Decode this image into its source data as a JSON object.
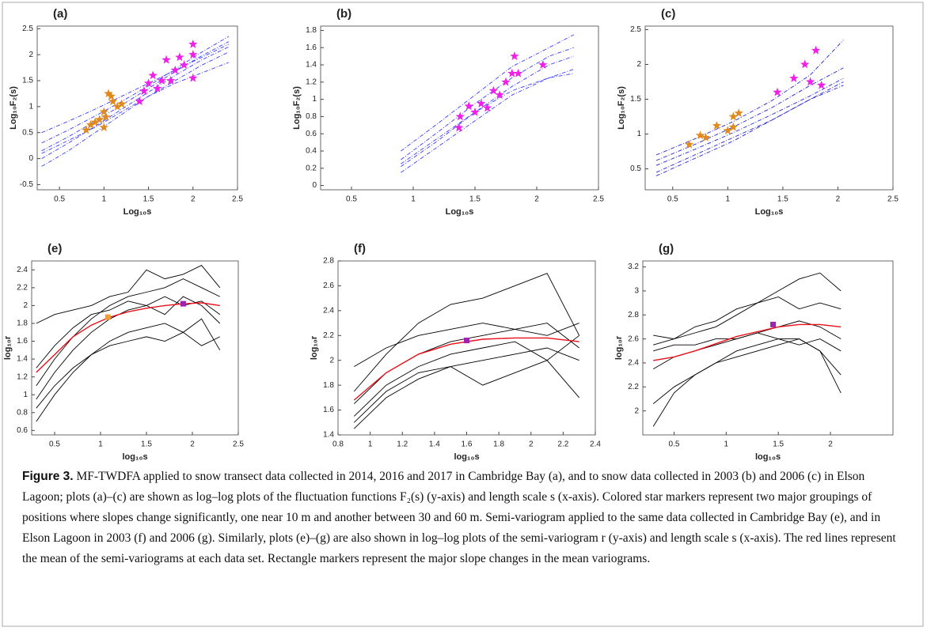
{
  "chart_data": [
    {
      "type": "line",
      "title": "(a)",
      "xlabel": "Log₁₀s",
      "ylabel": "Log₁₀F₂(s)",
      "xlim": [
        0.25,
        2.5
      ],
      "ylim": [
        -0.6,
        2.55
      ],
      "xticks": [
        0.5,
        1,
        1.5,
        2,
        2.5
      ],
      "yticks": [
        -0.5,
        0,
        0.5,
        1,
        1.5,
        2,
        2.5
      ],
      "x": [
        0.3,
        0.6,
        0.9,
        1.2,
        1.5,
        1.8,
        2.1,
        2.4
      ],
      "series": [
        {
          "color": "#3b3bff",
          "style": "dashdot",
          "values": [
            -0.15,
            0.15,
            0.5,
            0.85,
            1.2,
            1.5,
            1.8,
            2.05
          ]
        },
        {
          "color": "#3b3bff",
          "style": "dashdot",
          "values": [
            0.0,
            0.3,
            0.62,
            0.95,
            1.28,
            1.6,
            1.9,
            2.15
          ]
        },
        {
          "color": "#3b3bff",
          "style": "dashdot",
          "values": [
            0.15,
            0.42,
            0.72,
            1.03,
            1.35,
            1.68,
            1.98,
            2.25
          ]
        },
        {
          "color": "#3b3bff",
          "style": "dashdot",
          "values": [
            0.3,
            0.55,
            0.82,
            1.1,
            1.4,
            1.72,
            2.05,
            2.35
          ]
        },
        {
          "color": "#3b3bff",
          "style": "dashdot",
          "values": [
            0.5,
            0.72,
            0.95,
            1.2,
            1.45,
            1.7,
            1.95,
            2.2
          ]
        },
        {
          "color": "#3b3bff",
          "style": "dashdot",
          "values": [
            0.1,
            0.35,
            0.6,
            0.9,
            1.2,
            1.45,
            1.65,
            1.85
          ]
        },
        {
          "color": "#e08a1e",
          "marker": "star",
          "x": [
            0.8,
            0.85,
            0.95,
            1.0,
            1.0,
            1.05,
            1.1,
            1.15,
            1.2,
            0.9,
            1.02,
            1.08
          ],
          "values": [
            0.55,
            0.65,
            0.75,
            0.6,
            0.9,
            1.25,
            1.1,
            1.0,
            1.05,
            0.7,
            0.8,
            1.2
          ]
        },
        {
          "color": "#f020e8",
          "marker": "star",
          "x": [
            1.4,
            1.45,
            1.5,
            1.55,
            1.6,
            1.7,
            1.75,
            1.8,
            1.9,
            2.0,
            2.0,
            2.0,
            1.65,
            1.85
          ],
          "values": [
            1.1,
            1.3,
            1.45,
            1.6,
            1.35,
            1.9,
            1.5,
            1.7,
            1.8,
            2.2,
            1.55,
            2.0,
            1.5,
            1.95
          ]
        }
      ]
    },
    {
      "type": "line",
      "title": "(b)",
      "xlabel": "Log₁₀s",
      "ylabel": "Log₁₀F₂(s)",
      "xlim": [
        0.25,
        2.5
      ],
      "ylim": [
        -0.05,
        1.85
      ],
      "xticks": [
        0.5,
        1,
        1.5,
        2,
        2.5
      ],
      "yticks": [
        0,
        0.2,
        0.4,
        0.6,
        0.8,
        1,
        1.2,
        1.4,
        1.6,
        1.8
      ],
      "x": [
        0.9,
        1.2,
        1.5,
        1.8,
        2.1,
        2.3
      ],
      "series": [
        {
          "color": "#3b3bff",
          "style": "dashdot",
          "values": [
            0.15,
            0.45,
            0.75,
            1.05,
            1.25,
            1.35
          ]
        },
        {
          "color": "#3b3bff",
          "style": "dashdot",
          "values": [
            0.22,
            0.52,
            0.85,
            1.15,
            1.4,
            1.5
          ]
        },
        {
          "color": "#3b3bff",
          "style": "dashdot",
          "values": [
            0.3,
            0.62,
            0.95,
            1.25,
            1.5,
            1.6
          ]
        },
        {
          "color": "#3b3bff",
          "style": "dashdot",
          "values": [
            0.4,
            0.72,
            1.05,
            1.38,
            1.6,
            1.75
          ]
        },
        {
          "color": "#3b3bff",
          "style": "dashdot",
          "values": [
            0.25,
            0.55,
            0.85,
            1.1,
            1.25,
            1.3
          ]
        },
        {
          "color": "#f020e8",
          "marker": "star",
          "x": [
            1.37,
            1.38,
            1.45,
            1.5,
            1.55,
            1.6,
            1.65,
            1.7,
            1.75,
            1.8,
            1.82,
            1.85,
            2.05
          ],
          "values": [
            0.67,
            0.8,
            0.92,
            0.85,
            0.95,
            0.9,
            1.1,
            1.05,
            1.2,
            1.3,
            1.5,
            1.3,
            1.4
          ]
        }
      ]
    },
    {
      "type": "line",
      "title": "(c)",
      "xlabel": "Log₁₀s",
      "ylabel": "Log₁₀F₂(s)",
      "xlim": [
        0.25,
        2.5
      ],
      "ylim": [
        0.2,
        2.55
      ],
      "xticks": [
        0.5,
        1,
        1.5,
        2,
        2.5
      ],
      "yticks": [
        0.5,
        1,
        1.5,
        2,
        2.5
      ],
      "x": [
        0.35,
        0.7,
        1.05,
        1.4,
        1.75,
        2.05
      ],
      "series": [
        {
          "color": "#2424d8",
          "style": "dashdot",
          "values": [
            0.45,
            0.7,
            0.95,
            1.2,
            1.5,
            1.75
          ]
        },
        {
          "color": "#2424d8",
          "style": "dashdot",
          "values": [
            0.55,
            0.78,
            1.02,
            1.28,
            1.55,
            1.8
          ]
        },
        {
          "color": "#2424d8",
          "style": "dashdot",
          "values": [
            0.62,
            0.85,
            1.1,
            1.38,
            1.7,
            1.95
          ]
        },
        {
          "color": "#2424d8",
          "style": "dashdot",
          "values": [
            0.7,
            0.93,
            1.18,
            1.48,
            1.85,
            2.35
          ]
        },
        {
          "color": "#2424d8",
          "style": "dashdot",
          "values": [
            0.4,
            0.65,
            0.9,
            1.2,
            1.5,
            1.7
          ]
        },
        {
          "color": "#e08a1e",
          "marker": "star",
          "x": [
            0.65,
            0.75,
            0.8,
            0.9,
            1.0,
            1.05,
            1.05,
            1.1
          ],
          "values": [
            0.85,
            0.98,
            0.95,
            1.12,
            1.05,
            1.25,
            1.1,
            1.3
          ]
        },
        {
          "color": "#f020e8",
          "marker": "star",
          "x": [
            1.45,
            1.6,
            1.7,
            1.75,
            1.8,
            1.85
          ],
          "values": [
            1.6,
            1.8,
            2.0,
            1.75,
            2.2,
            1.7
          ]
        }
      ]
    },
    {
      "type": "line",
      "title": "(e)",
      "xlabel": "log₁₀s",
      "ylabel": "log₁₀r",
      "xlim": [
        0.25,
        2.5
      ],
      "ylim": [
        0.55,
        2.5
      ],
      "xticks": [
        0.5,
        1,
        1.5,
        2,
        2.5
      ],
      "yticks": [
        0.6,
        0.8,
        1,
        1.2,
        1.4,
        1.6,
        1.8,
        2,
        2.2,
        2.4
      ],
      "x": [
        0.3,
        0.5,
        0.7,
        0.9,
        1.1,
        1.3,
        1.5,
        1.7,
        1.9,
        2.1,
        2.3
      ],
      "series": [
        {
          "color": "#000000",
          "style": "solid",
          "values": [
            0.7,
            1.0,
            1.25,
            1.45,
            1.6,
            1.7,
            1.75,
            1.8,
            1.7,
            1.85,
            1.5
          ]
        },
        {
          "color": "#000000",
          "style": "solid",
          "values": [
            0.95,
            1.25,
            1.5,
            1.7,
            1.85,
            1.95,
            2.0,
            2.1,
            2.0,
            2.05,
            1.9
          ]
        },
        {
          "color": "#000000",
          "style": "solid",
          "values": [
            1.1,
            1.4,
            1.65,
            1.85,
            2.0,
            2.1,
            2.15,
            2.2,
            2.3,
            2.2,
            2.1
          ]
        },
        {
          "color": "#000000",
          "style": "solid",
          "values": [
            1.8,
            1.9,
            1.95,
            2.0,
            2.1,
            2.15,
            2.4,
            2.3,
            2.35,
            2.45,
            2.2
          ]
        },
        {
          "color": "#000000",
          "style": "solid",
          "values": [
            0.85,
            1.1,
            1.3,
            1.45,
            1.55,
            1.6,
            1.65,
            1.6,
            1.7,
            1.55,
            1.65
          ]
        },
        {
          "color": "#000000",
          "style": "solid",
          "values": [
            1.3,
            1.55,
            1.75,
            1.9,
            1.95,
            2.05,
            2.0,
            1.9,
            2.1,
            2.0,
            1.8
          ]
        },
        {
          "color": "#e8101a",
          "style": "solid",
          "values": [
            1.25,
            1.45,
            1.65,
            1.78,
            1.87,
            1.93,
            1.97,
            2.0,
            2.02,
            2.03,
            2.0
          ]
        },
        {
          "color": "#f0a030",
          "marker": "square",
          "x": [
            1.08
          ],
          "values": [
            1.87
          ]
        },
        {
          "color": "#a020b0",
          "marker": "square",
          "x": [
            1.9
          ],
          "values": [
            2.02
          ]
        }
      ]
    },
    {
      "type": "line",
      "title": "(f)",
      "xlabel": "log₁₀s",
      "ylabel": "log₁₀r",
      "xlim": [
        0.8,
        2.4
      ],
      "ylim": [
        1.4,
        2.8
      ],
      "xticks": [
        0.8,
        1,
        1.2,
        1.4,
        1.6,
        1.8,
        2,
        2.2,
        2.4
      ],
      "yticks": [
        1.4,
        1.6,
        1.8,
        2,
        2.2,
        2.4,
        2.6,
        2.8
      ],
      "x": [
        0.9,
        1.1,
        1.3,
        1.5,
        1.7,
        1.9,
        2.1,
        2.3
      ],
      "series": [
        {
          "color": "#000000",
          "style": "solid",
          "values": [
            1.45,
            1.7,
            1.85,
            1.95,
            2.0,
            2.05,
            2.1,
            2.0
          ]
        },
        {
          "color": "#000000",
          "style": "solid",
          "values": [
            1.55,
            1.8,
            1.95,
            2.05,
            2.1,
            2.15,
            2.0,
            2.2
          ]
        },
        {
          "color": "#000000",
          "style": "solid",
          "values": [
            1.65,
            1.9,
            2.05,
            2.15,
            2.2,
            2.25,
            2.3,
            2.1
          ]
        },
        {
          "color": "#000000",
          "style": "solid",
          "values": [
            1.75,
            2.05,
            2.3,
            2.45,
            2.5,
            2.6,
            2.7,
            2.2
          ]
        },
        {
          "color": "#000000",
          "style": "solid",
          "values": [
            1.95,
            2.1,
            2.2,
            2.25,
            2.3,
            2.25,
            2.2,
            2.3
          ]
        },
        {
          "color": "#000000",
          "style": "solid",
          "values": [
            1.5,
            1.75,
            1.9,
            1.95,
            1.8,
            1.9,
            2.0,
            1.7
          ]
        },
        {
          "color": "#e8101a",
          "style": "solid",
          "values": [
            1.68,
            1.9,
            2.05,
            2.13,
            2.17,
            2.18,
            2.18,
            2.15
          ]
        },
        {
          "color": "#a020b0",
          "marker": "square",
          "x": [
            1.6
          ],
          "values": [
            2.16
          ]
        }
      ]
    },
    {
      "type": "line",
      "title": "(g)",
      "xlabel": "log₁₀s",
      "ylabel": "log₁₀r",
      "xlim": [
        0.2,
        2.6
      ],
      "ylim": [
        1.8,
        3.25
      ],
      "xticks": [
        0.5,
        1,
        1.5,
        2
      ],
      "yticks": [
        2,
        2.2,
        2.4,
        2.6,
        2.8,
        3,
        3.2
      ],
      "x": [
        0.3,
        0.5,
        0.7,
        0.9,
        1.1,
        1.3,
        1.5,
        1.7,
        1.9,
        2.1
      ],
      "series": [
        {
          "color": "#000000",
          "style": "solid",
          "values": [
            1.87,
            2.15,
            2.3,
            2.4,
            2.5,
            2.55,
            2.6,
            2.6,
            2.5,
            2.15
          ]
        },
        {
          "color": "#000000",
          "style": "solid",
          "values": [
            2.06,
            2.2,
            2.3,
            2.4,
            2.45,
            2.5,
            2.55,
            2.6,
            2.5,
            2.3
          ]
        },
        {
          "color": "#000000",
          "style": "solid",
          "values": [
            2.35,
            2.45,
            2.5,
            2.55,
            2.6,
            2.65,
            2.7,
            2.75,
            2.7,
            2.6
          ]
        },
        {
          "color": "#000000",
          "style": "solid",
          "values": [
            2.55,
            2.6,
            2.65,
            2.7,
            2.8,
            2.9,
            3.0,
            3.1,
            3.15,
            3.0
          ]
        },
        {
          "color": "#000000",
          "style": "solid",
          "values": [
            2.63,
            2.6,
            2.7,
            2.75,
            2.85,
            2.9,
            2.95,
            2.85,
            2.9,
            2.85
          ]
        },
        {
          "color": "#000000",
          "style": "solid",
          "values": [
            2.5,
            2.55,
            2.55,
            2.6,
            2.6,
            2.65,
            2.6,
            2.55,
            2.6,
            2.5
          ]
        },
        {
          "color": "#e8101a",
          "style": "solid",
          "values": [
            2.42,
            2.45,
            2.5,
            2.56,
            2.62,
            2.66,
            2.7,
            2.72,
            2.72,
            2.7
          ]
        },
        {
          "color": "#a020b0",
          "marker": "square",
          "x": [
            1.45
          ],
          "values": [
            2.72
          ]
        }
      ]
    }
  ],
  "caption": {
    "label": "Figure 3.",
    "text": "MF-TWDFA applied to snow transect data collected in 2014, 2016 and 2017 in Cambridge Bay (a), and to snow data collected in 2003 (b) and 2006 (c) in Elson Lagoon; plots (a)–(c) are shown as log–log plots of the fluctuation functions F₂(s) (y-axis) and length scale s (x-axis). Colored star markers represent two major groupings of positions where slopes change significantly, one near 10 m and another between 30 and 60 m. Semi-variogram applied to the same data collected in Cambridge Bay (e), and in Elson Lagoon in 2003 (f) and 2006 (g). Similarly, plots (e)–(g) are also shown in log–log plots of the semi-variogram r (y-axis) and length scale s (x-axis). The red lines represent the mean of the semi-variograms at each data set. Rectangle markers represent the major slope changes in the mean variograms."
  }
}
